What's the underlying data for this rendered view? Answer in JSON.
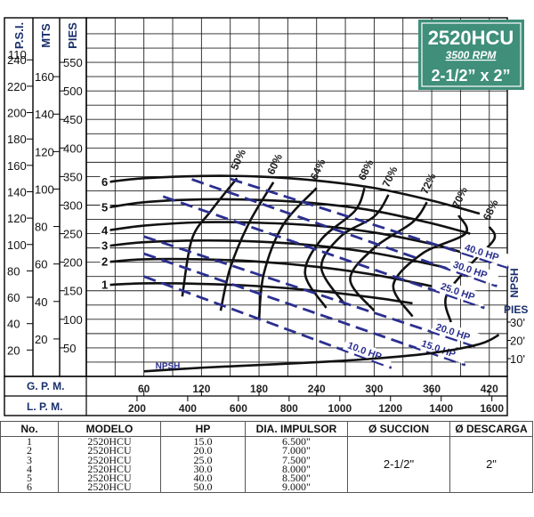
{
  "model_badge": {
    "title": "2520HCU",
    "rpm": "3500 RPM",
    "size": "2-1/2” x 2”",
    "bg": "#3f8f7a"
  },
  "colors": {
    "curve": "#111111",
    "hp_line": "#2b2f8f",
    "grid": "#222222"
  },
  "chart_data": {
    "type": "line",
    "x_label_gpm": "G. P. M.",
    "x_label_lpm": "L. P. M.",
    "x_ticks_gpm": [
      60,
      120,
      180,
      240,
      300,
      360,
      420
    ],
    "x_ticks_lpm": [
      200,
      400,
      600,
      800,
      1000,
      1200,
      1400,
      1600
    ],
    "x_range_gpm": [
      0,
      450
    ],
    "y_label_psi": "P.S.I.",
    "y_label_mts": "MTS",
    "y_label_pies": "PIES",
    "y_ticks_psi": [
      20,
      40,
      60,
      80,
      100,
      120,
      140,
      160,
      180,
      200,
      220,
      240
    ],
    "psi_top_label": "110",
    "y_ticks_mts": [
      20,
      40,
      60,
      80,
      100,
      120,
      140,
      160
    ],
    "y_ticks_pies": [
      50,
      100,
      150,
      200,
      250,
      300,
      350,
      400,
      450,
      500,
      550
    ],
    "y_range_pies": [
      0,
      600
    ],
    "impeller_curves": [
      {
        "name": "1",
        "gpm": [
          20,
          60,
          120,
          180,
          240,
          300,
          340
        ],
        "pies": [
          160,
          163,
          162,
          158,
          150,
          138,
          128
        ]
      },
      {
        "name": "2",
        "gpm": [
          20,
          60,
          120,
          180,
          240,
          300,
          360
        ],
        "pies": [
          200,
          205,
          205,
          201,
          192,
          178,
          158
        ]
      },
      {
        "name": "3",
        "gpm": [
          20,
          60,
          120,
          180,
          240,
          300,
          360,
          375
        ],
        "pies": [
          228,
          235,
          238,
          236,
          229,
          216,
          196,
          190
        ]
      },
      {
        "name": "4",
        "gpm": [
          20,
          60,
          120,
          180,
          240,
          300,
          360,
          390
        ],
        "pies": [
          255,
          264,
          270,
          269,
          264,
          252,
          232,
          218
        ]
      },
      {
        "name": "5",
        "gpm": [
          20,
          60,
          120,
          180,
          240,
          300,
          360,
          400
        ],
        "pies": [
          295,
          305,
          310,
          309,
          303,
          290,
          268,
          250
        ]
      },
      {
        "name": "6",
        "gpm": [
          20,
          60,
          120,
          180,
          240,
          300,
          360,
          410
        ],
        "pies": [
          340,
          347,
          351,
          350,
          343,
          330,
          308,
          285
        ]
      }
    ],
    "efficiency_labels": [
      "50%",
      "60%",
      "64%",
      "68%",
      "70%",
      "72%",
      "70%",
      "68%"
    ],
    "hp_lines": [
      {
        "name": "10.0 HP",
        "gpm": [
          60,
          318
        ],
        "pies": [
          175,
          15
        ]
      },
      {
        "name": "15.0 HP",
        "gpm": [
          60,
          395
        ],
        "pies": [
          215,
          20
        ]
      },
      {
        "name": "20.0 HP",
        "gpm": [
          60,
          410
        ],
        "pies": [
          245,
          50
        ]
      },
      {
        "name": "25.0 HP",
        "gpm": [
          80,
          415
        ],
        "pies": [
          315,
          120
        ]
      },
      {
        "name": "30.0 HP",
        "gpm": [
          110,
          428
        ],
        "pies": [
          345,
          158
        ]
      },
      {
        "name": "40.0 HP",
        "gpm": [
          150,
          440
        ],
        "pies": [
          346,
          190
        ]
      }
    ],
    "npsh": {
      "name": "NPSH",
      "gpm": [
        60,
        120,
        180,
        240,
        300,
        360,
        410,
        430
      ],
      "pies_npsh": [
        3,
        5,
        6.5,
        8,
        10,
        13,
        18,
        23
      ]
    },
    "npsh_axis": {
      "title": "NPSH",
      "unit": "PIES",
      "ticks": [
        "30'",
        "20'",
        "10'"
      ]
    }
  },
  "table": {
    "headers": [
      "No.",
      "MODELO",
      "HP",
      "DIA. IMPULSOR",
      "Ø SUCCION",
      "Ø DESCARGA"
    ],
    "rows": [
      [
        "1",
        "2520HCU",
        "15.0",
        "6.500\""
      ],
      [
        "2",
        "2520HCU",
        "20.0",
        "7.000\""
      ],
      [
        "3",
        "2520HCU",
        "25.0",
        "7.500\""
      ],
      [
        "4",
        "2520HCU",
        "30.0",
        "8.000\""
      ],
      [
        "5",
        "2520HCU",
        "40.0",
        "8.500\""
      ],
      [
        "6",
        "2520HCU",
        "50.0",
        "9.000\""
      ]
    ],
    "succion": "2-1/2\"",
    "descarga": "2\""
  }
}
